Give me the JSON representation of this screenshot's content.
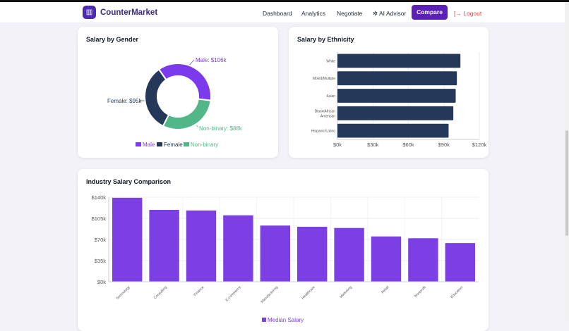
{
  "nav": {
    "brand": "CounterMarket",
    "items": [
      "Dashboard",
      "Analytics",
      "Negotiate",
      "AI Advisor"
    ],
    "compare": "Compare",
    "logout": "Logout"
  },
  "colors": {
    "male": "#7c3aed",
    "female": "#263859",
    "nonbinary": "#52b788",
    "bar": "#7b3fe4"
  },
  "gender": {
    "title": "Salary by Gender",
    "labels": {
      "male": "Male: $106k",
      "female": "Female: $95k",
      "nonbinary": "Non-binary: $88k"
    },
    "legend": [
      "Male",
      "Female",
      "Non-binary"
    ]
  },
  "chart_data": [
    {
      "type": "pie",
      "title": "Salary by Gender",
      "categories": [
        "Male",
        "Female",
        "Non-binary"
      ],
      "values": [
        106,
        95,
        88
      ],
      "unit": "$k",
      "legend": "bottom"
    },
    {
      "type": "bar",
      "orientation": "horizontal",
      "title": "Salary by Ethnicity",
      "categories": [
        "White",
        "Mixed/Multiple",
        "Asian",
        "Black/African American",
        "Hispanic/Latino"
      ],
      "values": [
        104,
        101,
        100,
        98,
        94
      ],
      "xlim": [
        0,
        120
      ],
      "ticks": [
        "$0k",
        "$30k",
        "$60k",
        "$90k",
        "$120k"
      ]
    },
    {
      "type": "bar",
      "title": "Industry Salary Comparison",
      "categories": [
        "Technology",
        "Consulting",
        "Finance",
        "E-commerce",
        "Manufacturing",
        "Healthcare",
        "Marketing",
        "Retail",
        "Nonprofit",
        "Education"
      ],
      "values": [
        139,
        119,
        118,
        110,
        93,
        91,
        89,
        75,
        72,
        64
      ],
      "ylim": [
        0,
        140
      ],
      "ticks": [
        "$0k",
        "$35k",
        "$70k",
        "$105k",
        "$140k"
      ],
      "series": [
        {
          "name": "Median Salary"
        }
      ],
      "legend": "bottom"
    }
  ]
}
